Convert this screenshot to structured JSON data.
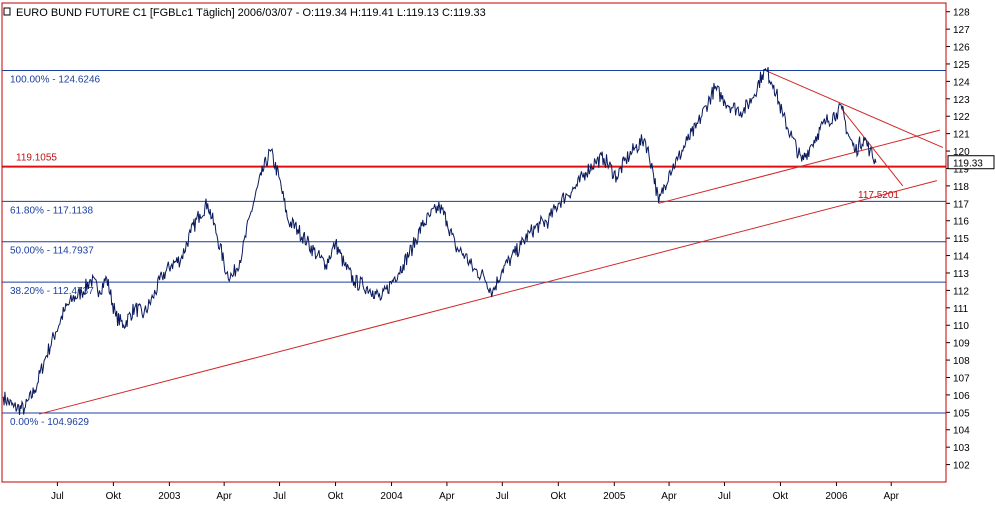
{
  "chart_data": {
    "type": "line",
    "title": "EURO BUND FUTURE C1 [FGBLc1  Täglich] 2006/03/07 - O:119.34 H:119.41 L:119.13 C:119.33",
    "instrument": "EURO BUND FUTURE C1",
    "ylim": [
      101,
      128.5
    ],
    "y_ticks": [
      102,
      103,
      104,
      105,
      106,
      107,
      108,
      109,
      110,
      111,
      112,
      113,
      114,
      115,
      116,
      117,
      118,
      119,
      120,
      121,
      122,
      123,
      124,
      125,
      126,
      127,
      128
    ],
    "x_ticks": [
      {
        "label": "Jul",
        "date": "2002-07-01"
      },
      {
        "label": "Okt",
        "date": "2002-10-01"
      },
      {
        "label": "2003",
        "date": "2003-01-01"
      },
      {
        "label": "Apr",
        "date": "2003-04-01"
      },
      {
        "label": "Jul",
        "date": "2003-07-01"
      },
      {
        "label": "Okt",
        "date": "2003-10-01"
      },
      {
        "label": "2004",
        "date": "2004-01-01"
      },
      {
        "label": "Apr",
        "date": "2004-04-01"
      },
      {
        "label": "Jul",
        "date": "2004-07-01"
      },
      {
        "label": "Okt",
        "date": "2004-10-01"
      },
      {
        "label": "2005",
        "date": "2005-01-01"
      },
      {
        "label": "Apr",
        "date": "2005-04-01"
      },
      {
        "label": "Jul",
        "date": "2005-07-01"
      },
      {
        "label": "Okt",
        "date": "2005-10-01"
      },
      {
        "label": "2006",
        "date": "2006-01-01"
      },
      {
        "label": "Apr",
        "date": "2006-04-01"
      }
    ],
    "xlim": [
      "2002-04-01",
      "2006-06-30"
    ],
    "series": [
      {
        "color": "#0a1a5c",
        "points": [
          [
            "2002-04-03",
            105.9
          ],
          [
            "2002-04-20",
            105.3
          ],
          [
            "2002-05-08",
            105.2
          ],
          [
            "2002-05-25",
            106.3
          ],
          [
            "2002-06-12",
            108.2
          ],
          [
            "2002-06-28",
            109.6
          ],
          [
            "2002-07-12",
            110.8
          ],
          [
            "2002-07-26",
            111.5
          ],
          [
            "2002-08-10",
            111.9
          ],
          [
            "2002-08-25",
            112.6
          ],
          [
            "2002-09-08",
            112.0
          ],
          [
            "2002-09-20",
            112.7
          ],
          [
            "2002-10-05",
            110.5
          ],
          [
            "2002-10-18",
            110.0
          ],
          [
            "2002-11-05",
            111.0
          ],
          [
            "2002-11-20",
            110.6
          ],
          [
            "2002-12-05",
            111.6
          ],
          [
            "2002-12-20",
            112.8
          ],
          [
            "2003-01-05",
            113.5
          ],
          [
            "2003-01-20",
            113.8
          ],
          [
            "2003-02-05",
            115.3
          ],
          [
            "2003-02-20",
            116.4
          ],
          [
            "2003-03-05",
            117.0
          ],
          [
            "2003-03-20",
            115.2
          ],
          [
            "2003-04-05",
            113.0
          ],
          [
            "2003-04-15",
            112.8
          ],
          [
            "2003-05-01",
            114.2
          ],
          [
            "2003-05-15",
            116.5
          ],
          [
            "2003-06-01",
            118.6
          ],
          [
            "2003-06-16",
            120.0
          ],
          [
            "2003-06-30",
            118.5
          ],
          [
            "2003-07-15",
            116.0
          ],
          [
            "2003-07-31",
            115.5
          ],
          [
            "2003-08-15",
            114.8
          ],
          [
            "2003-09-01",
            114.0
          ],
          [
            "2003-09-15",
            113.5
          ],
          [
            "2003-10-01",
            114.7
          ],
          [
            "2003-10-15",
            113.5
          ],
          [
            "2003-11-01",
            112.5
          ],
          [
            "2003-11-15",
            112.3
          ],
          [
            "2003-12-01",
            112.0
          ],
          [
            "2003-12-15",
            111.5
          ],
          [
            "2004-01-05",
            112.7
          ],
          [
            "2004-01-20",
            113.5
          ],
          [
            "2004-02-05",
            114.5
          ],
          [
            "2004-02-20",
            115.7
          ],
          [
            "2004-03-05",
            116.3
          ],
          [
            "2004-03-20",
            116.8
          ],
          [
            "2004-04-01",
            116.0
          ],
          [
            "2004-04-15",
            114.5
          ],
          [
            "2004-05-01",
            114.0
          ],
          [
            "2004-05-15",
            113.2
          ],
          [
            "2004-06-01",
            112.8
          ],
          [
            "2004-06-15",
            111.9
          ],
          [
            "2004-07-01",
            113.2
          ],
          [
            "2004-07-15",
            113.8
          ],
          [
            "2004-08-01",
            114.6
          ],
          [
            "2004-08-15",
            115.3
          ],
          [
            "2004-09-01",
            115.8
          ],
          [
            "2004-09-15",
            116.0
          ],
          [
            "2004-10-01",
            117.0
          ],
          [
            "2004-10-15",
            117.5
          ],
          [
            "2004-11-01",
            118.0
          ],
          [
            "2004-11-15",
            118.8
          ],
          [
            "2004-12-01",
            119.4
          ],
          [
            "2004-12-15",
            119.6
          ],
          [
            "2005-01-05",
            118.5
          ],
          [
            "2005-01-20",
            119.5
          ],
          [
            "2005-02-05",
            120.2
          ],
          [
            "2005-02-20",
            120.7
          ],
          [
            "2005-03-05",
            119.0
          ],
          [
            "2005-03-15",
            117.0
          ],
          [
            "2005-04-01",
            118.8
          ],
          [
            "2005-04-15",
            119.5
          ],
          [
            "2005-05-01",
            120.6
          ],
          [
            "2005-05-15",
            121.3
          ],
          [
            "2005-06-01",
            122.6
          ],
          [
            "2005-06-15",
            123.6
          ],
          [
            "2005-07-01",
            122.9
          ],
          [
            "2005-07-15",
            122.5
          ],
          [
            "2005-08-01",
            122.3
          ],
          [
            "2005-08-15",
            123.0
          ],
          [
            "2005-09-01",
            124.4
          ],
          [
            "2005-09-08",
            124.6
          ],
          [
            "2005-09-20",
            123.8
          ],
          [
            "2005-10-05",
            122.0
          ],
          [
            "2005-10-20",
            120.8
          ],
          [
            "2005-11-05",
            119.4
          ],
          [
            "2005-11-18",
            120.2
          ],
          [
            "2005-12-01",
            121.0
          ],
          [
            "2005-12-15",
            121.7
          ],
          [
            "2006-01-01",
            122.2
          ],
          [
            "2006-01-10",
            122.4
          ],
          [
            "2006-01-20",
            121.0
          ],
          [
            "2006-02-01",
            120.0
          ],
          [
            "2006-02-15",
            120.8
          ],
          [
            "2006-02-25",
            120.0
          ],
          [
            "2006-03-07",
            119.33
          ]
        ]
      }
    ],
    "fib_levels": [
      {
        "label": "100.00% - 124.6246",
        "value": 124.6246
      },
      {
        "label": "61.80% - 117.1138",
        "value": 117.1138
      },
      {
        "label": "50.00% - 114.7937",
        "value": 114.7937
      },
      {
        "label": "38.20% - 112.4737",
        "value": 112.4737
      },
      {
        "label": "0.00% - 104.9629",
        "value": 104.9629
      }
    ],
    "resistance": {
      "label": "119.1055",
      "value": 119.1055
    },
    "last_price": {
      "label": "119.33",
      "value": 119.33
    },
    "target": {
      "label": "117.5201",
      "value": 117.5201
    },
    "trendlines": [
      {
        "from": [
          "2002-06-01",
          104.9
        ],
        "to": [
          "2006-06-15",
          118.3
        ]
      },
      {
        "from": [
          "2005-03-15",
          117.0
        ],
        "to": [
          "2006-06-20",
          121.2
        ]
      },
      {
        "from": [
          "2005-09-08",
          124.6
        ],
        "to": [
          "2006-06-25",
          120.2
        ]
      },
      {
        "from": [
          "2006-01-10",
          122.4
        ],
        "to": [
          "2006-04-20",
          118.0
        ]
      }
    ],
    "colors": {
      "price": "#0a1a5c",
      "fib": "#1c3fa0",
      "resistance": "#e01010",
      "trendline": "#d02828",
      "frame": "#c00000"
    }
  }
}
